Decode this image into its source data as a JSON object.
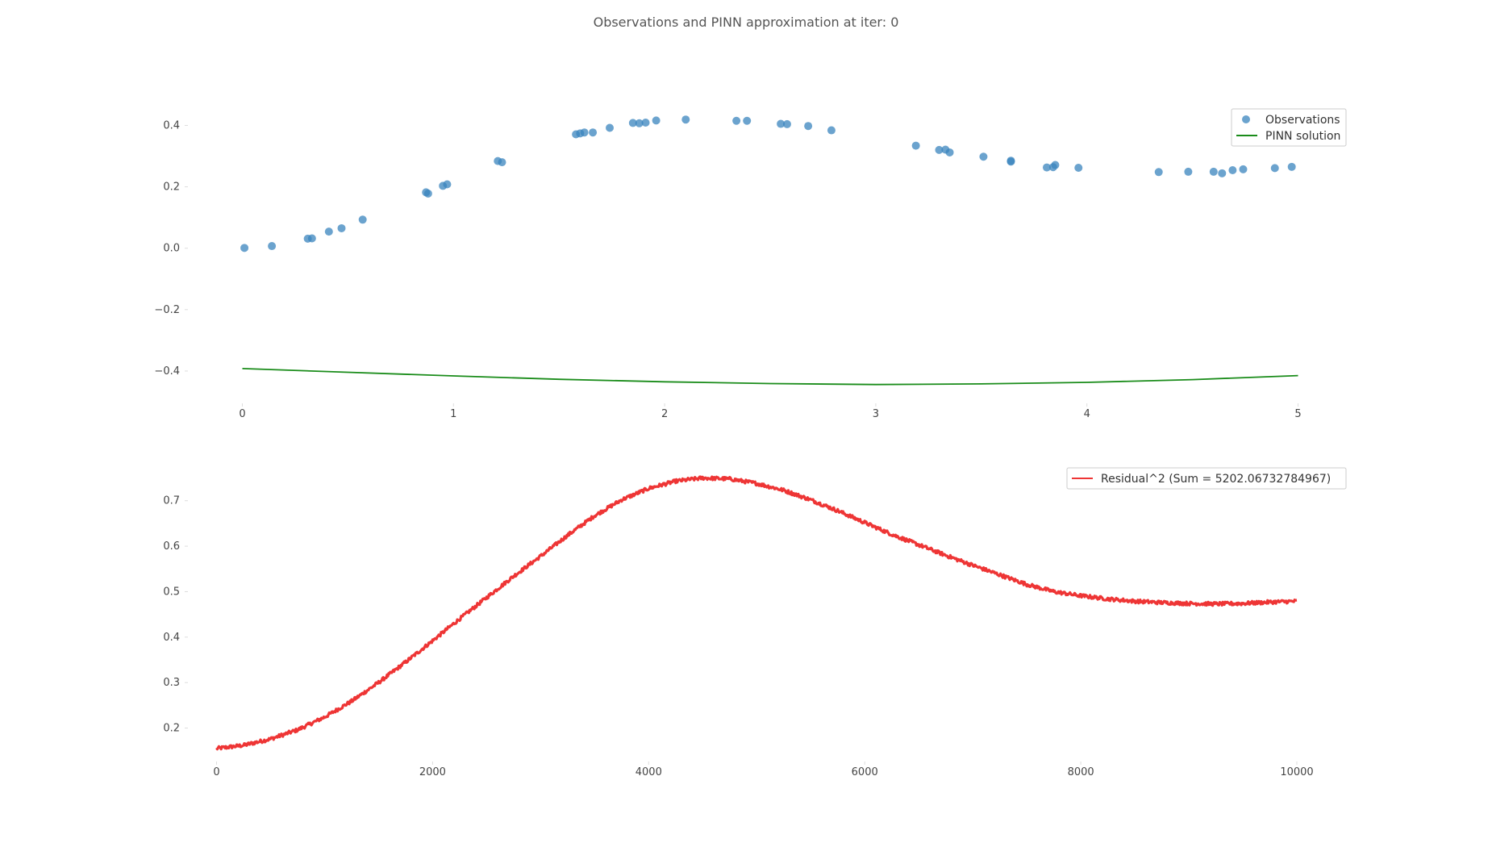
{
  "figure": {
    "title": "Observations and PINN approximation at iter: 0"
  },
  "chart_data": [
    {
      "type": "scatter",
      "xlabel": "",
      "ylabel": "",
      "xlim": [
        -0.25,
        5.25
      ],
      "ylim": [
        -0.5,
        0.48
      ],
      "xticks": [
        0,
        1,
        2,
        3,
        4,
        5
      ],
      "yticks": [
        -0.4,
        -0.2,
        0.0,
        0.2,
        0.4
      ],
      "ytick_labels": [
        "−0.4",
        "−0.2",
        "0.0",
        "0.2",
        "0.4"
      ],
      "grid": false,
      "legend": "top-right",
      "series": [
        {
          "name": "Observations",
          "kind": "scatter",
          "color": "#3a84be",
          "x": [
            0.01,
            0.14,
            0.31,
            0.33,
            0.41,
            0.47,
            0.57,
            0.87,
            0.88,
            0.95,
            0.97,
            1.21,
            1.23,
            1.58,
            1.6,
            1.62,
            1.66,
            1.74,
            1.85,
            1.88,
            1.91,
            1.96,
            2.1,
            2.34,
            2.39,
            2.55,
            2.58,
            2.68,
            2.79,
            3.19,
            3.3,
            3.33,
            3.35,
            3.51,
            3.64,
            3.64,
            3.81,
            3.84,
            3.85,
            3.96,
            4.34,
            4.48,
            4.6,
            4.64,
            4.69,
            4.74,
            4.89,
            4.97
          ],
          "y": [
            0.001,
            0.007,
            0.031,
            0.032,
            0.054,
            0.065,
            0.093,
            0.182,
            0.178,
            0.203,
            0.208,
            0.284,
            0.28,
            0.371,
            0.374,
            0.377,
            0.377,
            0.392,
            0.408,
            0.407,
            0.409,
            0.416,
            0.419,
            0.415,
            0.415,
            0.405,
            0.404,
            0.398,
            0.384,
            0.334,
            0.32,
            0.321,
            0.312,
            0.298,
            0.282,
            0.285,
            0.263,
            0.264,
            0.271,
            0.262,
            0.248,
            0.249,
            0.249,
            0.244,
            0.254,
            0.257,
            0.261,
            0.265
          ]
        },
        {
          "name": "PINN solution",
          "kind": "line",
          "color": "#1a8c1a",
          "x": [
            0,
            0.5,
            1,
            1.5,
            2,
            2.5,
            3,
            3.5,
            4,
            4.5,
            5
          ],
          "y": [
            -0.392,
            -0.404,
            -0.416,
            -0.427,
            -0.435,
            -0.441,
            -0.444,
            -0.442,
            -0.437,
            -0.428,
            -0.415
          ]
        }
      ]
    },
    {
      "type": "line",
      "xlabel": "",
      "ylabel": "",
      "xlim": [
        -250,
        10500
      ],
      "ylim": [
        0.13,
        0.79
      ],
      "xticks": [
        0,
        2000,
        4000,
        6000,
        8000,
        10000
      ],
      "yticks": [
        0.2,
        0.3,
        0.4,
        0.5,
        0.6,
        0.7
      ],
      "grid": false,
      "legend": "top-right",
      "series": [
        {
          "name": "Residual^2 (Sum = 5202.06732784967)",
          "color": "#ee3535",
          "noise_amplitude": 0.004,
          "x": [
            0,
            250,
            500,
            750,
            1000,
            1250,
            1500,
            1750,
            2000,
            2250,
            2500,
            2750,
            3000,
            3250,
            3500,
            3750,
            4000,
            4250,
            4500,
            4750,
            5000,
            5250,
            5500,
            5750,
            6000,
            6250,
            6500,
            6750,
            7000,
            7250,
            7500,
            7750,
            8000,
            8250,
            8500,
            8750,
            9000,
            9250,
            9500,
            9750,
            10000
          ],
          "y": [
            0.155,
            0.162,
            0.176,
            0.196,
            0.224,
            0.259,
            0.3,
            0.345,
            0.392,
            0.44,
            0.487,
            0.534,
            0.578,
            0.624,
            0.667,
            0.702,
            0.727,
            0.743,
            0.75,
            0.748,
            0.738,
            0.723,
            0.702,
            0.678,
            0.652,
            0.626,
            0.603,
            0.58,
            0.558,
            0.537,
            0.516,
            0.5,
            0.491,
            0.484,
            0.479,
            0.476,
            0.474,
            0.473,
            0.474,
            0.477,
            0.479
          ]
        }
      ]
    }
  ]
}
